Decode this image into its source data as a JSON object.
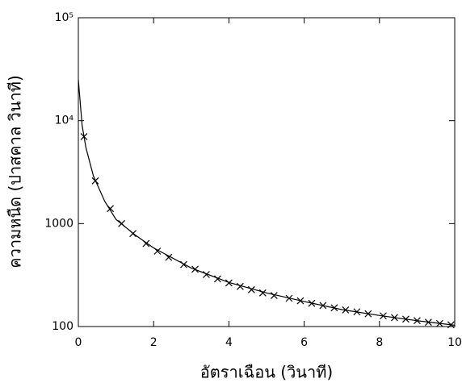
{
  "chart_data": {
    "type": "line",
    "x_label": "อัตราเฉือน (วินาที)",
    "y_label": "ความหนืด (ปาสคาล วินาที)",
    "xlim": [
      0,
      10
    ],
    "xticks": [
      0,
      2,
      4,
      6,
      8,
      10
    ],
    "ylim": [
      100,
      100000
    ],
    "log_y": true,
    "yticks": [
      100,
      1000,
      {
        "value": 10000,
        "label": "10⁴"
      },
      {
        "value": 100000,
        "label": "10⁵"
      }
    ],
    "series": [
      {
        "color": "#000000",
        "marker": "x",
        "x": [
          0.15,
          0.45,
          0.85,
          1.15,
          1.45,
          1.8,
          2.1,
          2.4,
          2.8,
          3.1,
          3.4,
          3.7,
          4.0,
          4.3,
          4.6,
          4.9,
          5.2,
          5.6,
          5.9,
          6.2,
          6.5,
          6.8,
          7.1,
          7.4,
          7.7,
          8.1,
          8.4,
          8.7,
          9.0,
          9.3,
          9.6,
          9.9
        ],
        "values": [
          7000,
          2600,
          1400,
          1000,
          800,
          640,
          540,
          470,
          400,
          360,
          320,
          290,
          265,
          245,
          228,
          212,
          200,
          188,
          178,
          168,
          160,
          152,
          145,
          139,
          133,
          127,
          122,
          118,
          114,
          110,
          107,
          104
        ]
      },
      {
        "color": "#000000",
        "marker": "none",
        "x": [
          0,
          0.1,
          0.2,
          0.4,
          0.7,
          1,
          1.5,
          2,
          3,
          4,
          5,
          6,
          7,
          8,
          9,
          10
        ],
        "values": [
          25000,
          9000,
          5500,
          2900,
          1650,
          1100,
          780,
          580,
          370,
          268,
          212,
          175,
          146,
          128,
          114,
          103
        ]
      }
    ]
  }
}
